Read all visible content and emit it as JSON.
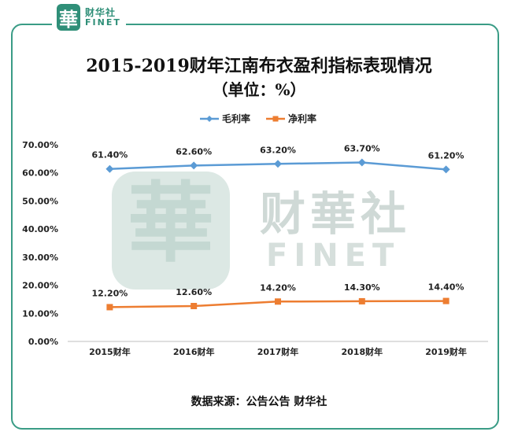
{
  "logo": {
    "mark": "華",
    "cn": "财华社",
    "en": "FINET"
  },
  "source": "数据来源：公告公告   财华社",
  "watermark": {
    "mark": "華",
    "cn": "财華社",
    "en": "FINET"
  },
  "colors": {
    "gross": "#5b9bd5",
    "net": "#ed7d31",
    "frame": "#3a9c86"
  },
  "chart_data": {
    "type": "line",
    "title": "2015-2019财年江南布衣盈利指标表现情况",
    "subtitle": "（单位：%）",
    "categories": [
      "2015财年",
      "2016财年",
      "2017财年",
      "2018财年",
      "2019财年"
    ],
    "y_ticks": [
      "0.00%",
      "10.00%",
      "20.00%",
      "30.00%",
      "40.00%",
      "50.00%",
      "60.00%",
      "70.00%"
    ],
    "ylim": [
      0,
      70
    ],
    "legend_position": "top-center",
    "grid": false,
    "series": [
      {
        "name": "毛利率",
        "values": [
          61.4,
          62.6,
          63.2,
          63.7,
          61.2
        ],
        "labels": [
          "61.40%",
          "62.60%",
          "63.20%",
          "63.70%",
          "61.20%"
        ],
        "marker": "diamond"
      },
      {
        "name": "净利率",
        "values": [
          12.2,
          12.6,
          14.2,
          14.3,
          14.4
        ],
        "labels": [
          "12.20%",
          "12.60%",
          "14.20%",
          "14.30%",
          "14.40%"
        ],
        "marker": "square"
      }
    ]
  }
}
